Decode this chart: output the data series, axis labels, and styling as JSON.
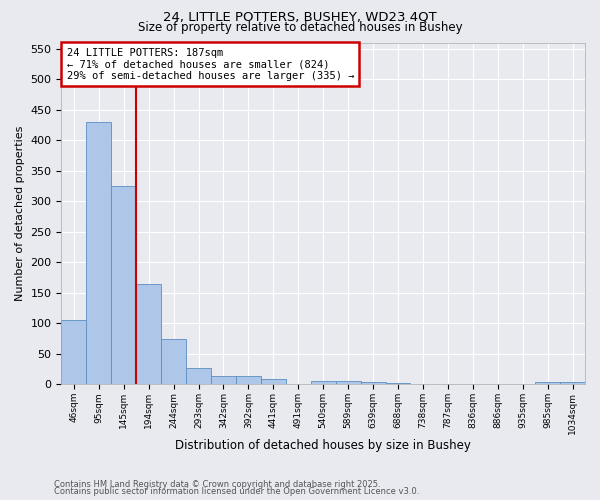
{
  "title1": "24, LITTLE POTTERS, BUSHEY, WD23 4QT",
  "title2": "Size of property relative to detached houses in Bushey",
  "xlabel": "Distribution of detached houses by size in Bushey",
  "ylabel": "Number of detached properties",
  "bar_values": [
    105,
    430,
    325,
    165,
    75,
    27,
    13,
    13,
    9,
    1,
    5,
    5,
    4,
    2,
    0,
    0,
    0,
    0,
    0,
    4,
    3
  ],
  "bar_labels": [
    "46sqm",
    "95sqm",
    "145sqm",
    "194sqm",
    "244sqm",
    "293sqm",
    "342sqm",
    "392sqm",
    "441sqm",
    "491sqm",
    "540sqm",
    "589sqm",
    "639sqm",
    "688sqm",
    "738sqm",
    "787sqm",
    "836sqm",
    "886sqm",
    "935sqm",
    "985sqm",
    "1034sqm"
  ],
  "bar_color": "#aec6e8",
  "bar_edge_color": "#5a8fc2",
  "background_color": "#e8eaf0",
  "grid_color": "#ffffff",
  "red_line_index": 2.5,
  "red_line_color": "#cc0000",
  "annotation_title": "24 LITTLE POTTERS: 187sqm",
  "annotation_line2": "← 71% of detached houses are smaller (824)",
  "annotation_line3": "29% of semi-detached houses are larger (335) →",
  "annotation_box_color": "#ffffff",
  "annotation_border_color": "#cc0000",
  "ylim": [
    0,
    560
  ],
  "yticks": [
    0,
    50,
    100,
    150,
    200,
    250,
    300,
    350,
    400,
    450,
    500,
    550
  ],
  "footnote1": "Contains HM Land Registry data © Crown copyright and database right 2025.",
  "footnote2": "Contains public sector information licensed under the Open Government Licence v3.0."
}
